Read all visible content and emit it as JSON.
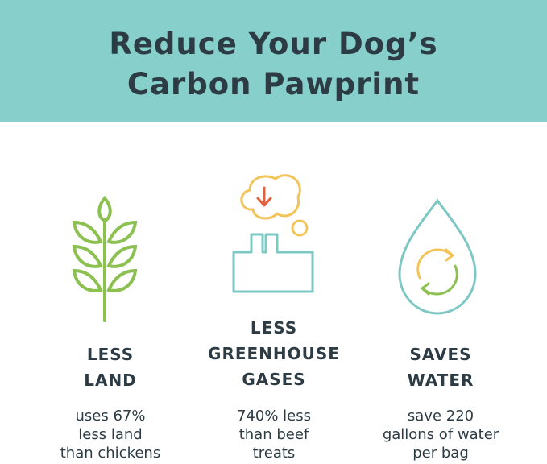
{
  "header": {
    "title_line1": "Reduce Your Dog’s",
    "title_line2": "Carbon Pawprint",
    "background_color": "#86cfcb"
  },
  "columns": [
    {
      "icon": "leaf-branch-icon",
      "heading_line1": "LESS",
      "heading_line2": "LAND",
      "body_line1": "uses 67%",
      "body_line2": "less land",
      "body_line3": "than chickens"
    },
    {
      "icon": "factory-emissions-icon",
      "heading_line1": "LESS",
      "heading_line2": "GREENHOUSE",
      "heading_line3": "GASES",
      "body_line1": "740% less",
      "body_line2": "than beef",
      "body_line3": "treats"
    },
    {
      "icon": "water-drop-recycle-icon",
      "heading_line1": "SAVES",
      "heading_line2": "WATER",
      "body_line1": "save 220",
      "body_line2": "gallons of water",
      "body_line3": "per bag"
    }
  ],
  "colors": {
    "green": "#8cc152",
    "teal": "#7ec8c4",
    "yellow": "#f2c45a",
    "red": "#e5603c",
    "text": "#2d3c44"
  }
}
